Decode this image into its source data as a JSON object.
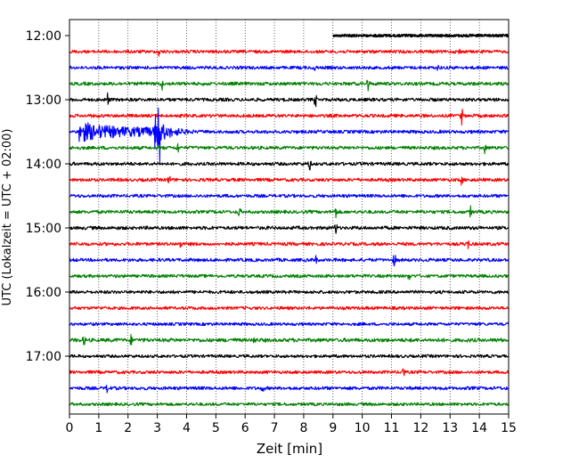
{
  "chart_data": {
    "type": "line",
    "title": "",
    "xlabel": "Zeit  [min]",
    "ylabel": "UTC (Lokalzeit = UTC + 02:00)",
    "xlim": [
      0,
      15
    ],
    "xticks": [
      0,
      1,
      2,
      3,
      4,
      5,
      6,
      7,
      8,
      9,
      10,
      11,
      12,
      13,
      14,
      15
    ],
    "grid_x": "dotted vertical at each minute",
    "yticks": [
      "12:00",
      "13:00",
      "14:00",
      "15:00",
      "16:00",
      "17:00"
    ],
    "yticks_minutes": [
      0,
      60,
      120,
      180,
      240,
      300
    ],
    "trace_interval_min": 15,
    "first_trace_start_min": 9.0,
    "color_cycle": [
      "#000000",
      "#ff0000",
      "#0000ff",
      "#008000"
    ],
    "traces": [
      {
        "offset_min": 0,
        "color": "#000000",
        "level": 0.3
      },
      {
        "offset_min": 15,
        "color": "#ff0000",
        "level": 0.35,
        "events": [
          {
            "t": 3.05,
            "amp": 0.5
          },
          {
            "t": 13.3,
            "amp": 0.4
          }
        ]
      },
      {
        "offset_min": 30,
        "color": "#0000ff",
        "level": 0.35,
        "events": [
          {
            "t": 8.4,
            "amp": 0.4
          },
          {
            "t": 12.6,
            "amp": 0.4
          }
        ]
      },
      {
        "offset_min": 45,
        "color": "#008000",
        "level": 0.4,
        "events": [
          {
            "t": 3.15,
            "amp": 0.8
          },
          {
            "t": 10.2,
            "amp": 0.8
          }
        ]
      },
      {
        "offset_min": 60,
        "color": "#000000",
        "level": 0.4,
        "events": [
          {
            "t": 1.3,
            "amp": 0.8
          },
          {
            "t": 8.4,
            "amp": 0.8
          }
        ]
      },
      {
        "offset_min": 75,
        "color": "#ff0000",
        "level": 0.4,
        "events": [
          {
            "t": 13.4,
            "amp": 0.9
          }
        ]
      },
      {
        "offset_min": 90,
        "color": "#0000ff",
        "level": 0.4,
        "quake": true
      },
      {
        "offset_min": 105,
        "color": "#008000",
        "level": 0.4,
        "events": [
          {
            "t": 3.7,
            "amp": 0.6
          },
          {
            "t": 14.2,
            "amp": 0.7
          }
        ]
      },
      {
        "offset_min": 120,
        "color": "#000000",
        "level": 0.4,
        "events": [
          {
            "t": 8.2,
            "amp": 0.8
          }
        ]
      },
      {
        "offset_min": 135,
        "color": "#ff0000",
        "level": 0.4,
        "events": [
          {
            "t": 3.4,
            "amp": 0.5
          },
          {
            "t": 13.4,
            "amp": 0.6
          }
        ]
      },
      {
        "offset_min": 150,
        "color": "#0000ff",
        "level": 0.35
      },
      {
        "offset_min": 165,
        "color": "#008000",
        "level": 0.4,
        "events": [
          {
            "t": 5.8,
            "amp": 0.7
          },
          {
            "t": 9.1,
            "amp": 0.6
          },
          {
            "t": 13.7,
            "amp": 0.6
          }
        ]
      },
      {
        "offset_min": 180,
        "color": "#000000",
        "level": 0.45,
        "events": [
          {
            "t": 9.1,
            "amp": 0.7
          }
        ]
      },
      {
        "offset_min": 195,
        "color": "#ff0000",
        "level": 0.4,
        "events": [
          {
            "t": 3.8,
            "amp": 0.5
          },
          {
            "t": 13.6,
            "amp": 0.7
          }
        ]
      },
      {
        "offset_min": 210,
        "color": "#0000ff",
        "level": 0.4,
        "events": [
          {
            "t": 8.4,
            "amp": 0.6
          },
          {
            "t": 11.1,
            "amp": 0.8
          }
        ]
      },
      {
        "offset_min": 225,
        "color": "#008000",
        "level": 0.35,
        "events": [
          {
            "t": 11.6,
            "amp": 0.4
          }
        ]
      },
      {
        "offset_min": 240,
        "color": "#000000",
        "level": 0.35
      },
      {
        "offset_min": 255,
        "color": "#ff0000",
        "level": 0.35
      },
      {
        "offset_min": 270,
        "color": "#0000ff",
        "level": 0.3
      },
      {
        "offset_min": 285,
        "color": "#008000",
        "level": 0.55,
        "events": [
          {
            "t": 0.5,
            "amp": 0.5
          },
          {
            "t": 2.1,
            "amp": 0.5
          },
          {
            "t": 6.3,
            "amp": 0.4
          }
        ]
      },
      {
        "offset_min": 300,
        "color": "#000000",
        "level": 0.3
      },
      {
        "offset_min": 315,
        "color": "#ff0000",
        "level": 0.35,
        "events": [
          {
            "t": 11.4,
            "amp": 0.8
          }
        ]
      },
      {
        "offset_min": 330,
        "color": "#0000ff",
        "level": 0.4,
        "events": [
          {
            "t": 1.3,
            "amp": 0.6
          },
          {
            "t": 6.6,
            "amp": 0.4
          }
        ]
      },
      {
        "offset_min": 345,
        "color": "#008000",
        "level": 0.3
      }
    ]
  }
}
